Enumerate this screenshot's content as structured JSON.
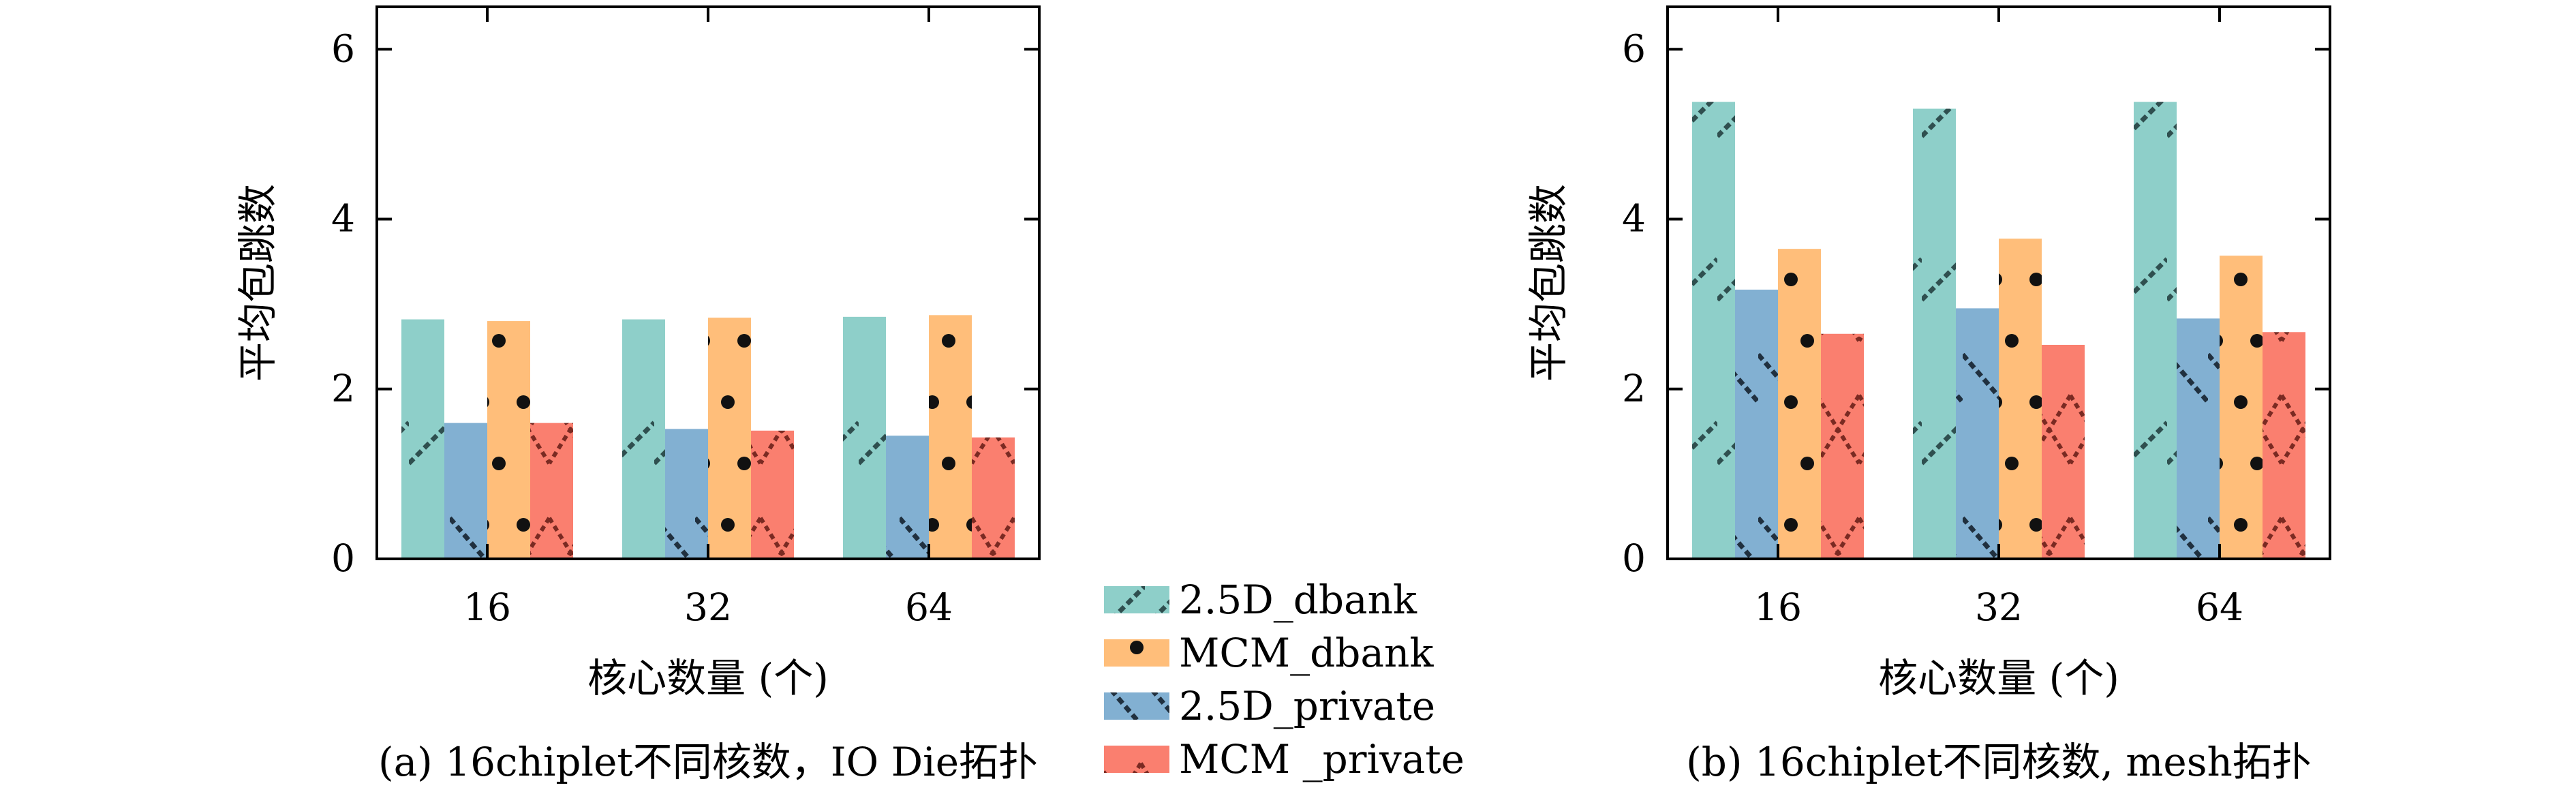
{
  "chart_data": [
    {
      "type": "bar",
      "caption": "(a) 16chiplet不同核数，IO Die拓扑",
      "xlabel": "核心数量 (个)",
      "ylabel": "平均包跳数",
      "categories": [
        "16",
        "32",
        "64"
      ],
      "ylim": [
        0,
        6.5
      ],
      "yticks": [
        "0",
        "2",
        "4",
        "6"
      ],
      "series": [
        {
          "name": "2.5D_dbank",
          "values": [
            2.82,
            2.82,
            2.85
          ]
        },
        {
          "name": "MCM_dbank",
          "values": [
            2.8,
            2.84,
            2.87
          ]
        },
        {
          "name": "2.5D_private",
          "values": [
            1.6,
            1.53,
            1.45
          ]
        },
        {
          "name": "MCM _private",
          "values": [
            1.6,
            1.51,
            1.43
          ]
        }
      ],
      "grid": false
    },
    {
      "type": "bar",
      "caption": "(b) 16chiplet不同核数, mesh拓扑",
      "xlabel": "核心数量 (个)",
      "ylabel": "平均包跳数",
      "categories": [
        "16",
        "32",
        "64"
      ],
      "ylim": [
        0,
        6.5
      ],
      "yticks": [
        "0",
        "2",
        "4",
        "6"
      ],
      "series": [
        {
          "name": "2.5D_dbank",
          "values": [
            5.38,
            5.3,
            5.38
          ]
        },
        {
          "name": "MCM_dbank",
          "values": [
            3.65,
            3.77,
            3.57
          ]
        },
        {
          "name": "2.5D_private",
          "values": [
            3.17,
            2.95,
            2.83
          ]
        },
        {
          "name": "MCM _private",
          "values": [
            2.65,
            2.52,
            2.67
          ]
        }
      ],
      "grid": false
    }
  ],
  "legend": {
    "placement": "bottom-center",
    "entries": [
      "2.5D_dbank",
      "MCM_dbank",
      "2.5D_private",
      "MCM _private"
    ]
  },
  "colors": {
    "2.5D_dbank": "#8ecfc9",
    "MCM_dbank": "#ffbe7a",
    "2.5D_private": "#82b0d2",
    "MCM _private": "#fa7f6f"
  }
}
